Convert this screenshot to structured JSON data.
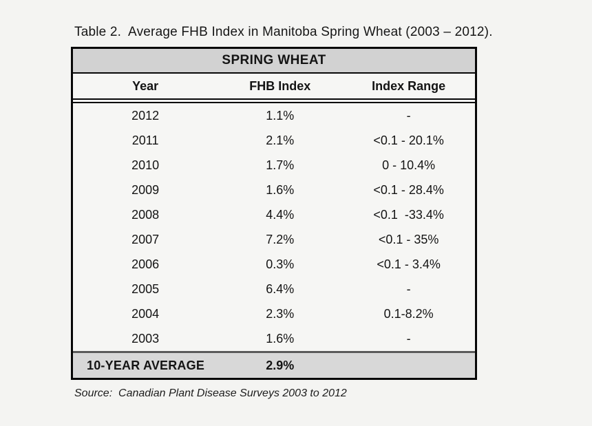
{
  "title": "Table 2.  Average FHB Index in Manitoba Spring Wheat (2003 – 2012).",
  "table": {
    "header": "SPRING WHEAT",
    "columns": {
      "year": "Year",
      "fhb_index": "FHB Index",
      "index_range": "Index Range"
    },
    "rows": [
      {
        "year": "2012",
        "fhb_index": "1.1%",
        "index_range": "-"
      },
      {
        "year": "2011",
        "fhb_index": "2.1%",
        "index_range": "<0.1 - 20.1%"
      },
      {
        "year": "2010",
        "fhb_index": "1.7%",
        "index_range": "0 - 10.4%"
      },
      {
        "year": "2009",
        "fhb_index": "1.6%",
        "index_range": "<0.1 - 28.4%"
      },
      {
        "year": "2008",
        "fhb_index": "4.4%",
        "index_range": "<0.1  -33.4%"
      },
      {
        "year": "2007",
        "fhb_index": "7.2%",
        "index_range": "<0.1 - 35%"
      },
      {
        "year": "2006",
        "fhb_index": "0.3%",
        "index_range": "<0.1 - 3.4%"
      },
      {
        "year": "2005",
        "fhb_index": "6.4%",
        "index_range": "-"
      },
      {
        "year": "2004",
        "fhb_index": "2.3%",
        "index_range": "0.1-8.2%"
      },
      {
        "year": "2003",
        "fhb_index": "1.6%",
        "index_range": "-"
      }
    ],
    "footer": {
      "label": "10-YEAR AVERAGE",
      "fhb_index": "2.9%",
      "index_range": ""
    }
  },
  "source": "Source:  Canadian Plant Disease Surveys 2003 to 2012",
  "colors": {
    "page_bg": "#f4f4f2",
    "header_band_bg": "#d2d2d2",
    "footer_band_bg": "#d8d8d8",
    "border": "#070707",
    "footer_top_border": "#5a5a5a"
  }
}
